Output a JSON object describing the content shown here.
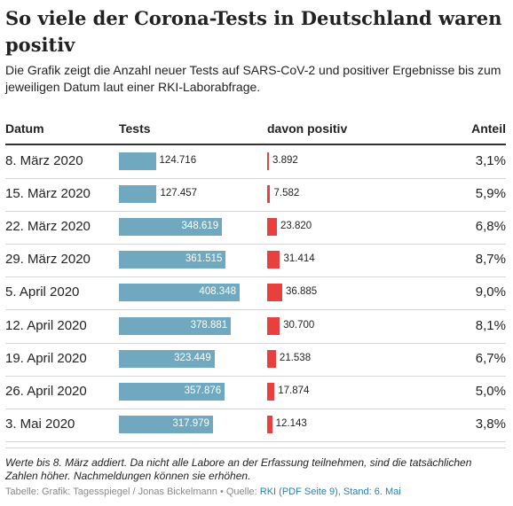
{
  "title": "So viele der Corona-Tests in Deutschland waren positiv",
  "description": "Die Grafik zeigt die Anzahl neuer Tests auf SARS-CoV-2 und positiver Ergebnisse bis zum jeweiligen Datum laut einer RKI-Laborabfrage.",
  "headers": {
    "date": "Datum",
    "tests": "Tests",
    "positive": "davon positiv",
    "share": "Anteil"
  },
  "colors": {
    "tests_bar": "#6fa8bf",
    "positive_bar": "#e8403e"
  },
  "chart_data": {
    "type": "table",
    "rows": [
      {
        "date": "8. März 2020",
        "tests": 124716,
        "tests_label": "124.716",
        "positive": 3892,
        "positive_label": "3.892",
        "share": "3,1%"
      },
      {
        "date": "15. März 2020",
        "tests": 127457,
        "tests_label": "127.457",
        "positive": 7582,
        "positive_label": "7.582",
        "share": "5,9%"
      },
      {
        "date": "22. März 2020",
        "tests": 348619,
        "tests_label": "348.619",
        "positive": 23820,
        "positive_label": "23.820",
        "share": "6,8%"
      },
      {
        "date": "29. März 2020",
        "tests": 361515,
        "tests_label": "361.515",
        "positive": 31414,
        "positive_label": "31.414",
        "share": "8,7%"
      },
      {
        "date": "5. April 2020",
        "tests": 408348,
        "tests_label": "408.348",
        "positive": 36885,
        "positive_label": "36.885",
        "share": "9,0%"
      },
      {
        "date": "12. April 2020",
        "tests": 378881,
        "tests_label": "378.881",
        "positive": 30700,
        "positive_label": "30.700",
        "share": "8,1%"
      },
      {
        "date": "19. April 2020",
        "tests": 323449,
        "tests_label": "323.449",
        "positive": 21538,
        "positive_label": "21.538",
        "share": "6,7%"
      },
      {
        "date": "26. April 2020",
        "tests": 357876,
        "tests_label": "357.876",
        "positive": 17874,
        "positive_label": "17.874",
        "share": "5,0%"
      },
      {
        "date": "3. Mai 2020",
        "tests": 317979,
        "tests_label": "317.979",
        "positive": 12143,
        "positive_label": "12.143",
        "share": "3,8%"
      }
    ]
  },
  "note": "Werte bis 8. März addiert. Da nicht alle Labore an der Erfassung teilnehmen, sind die tatsächlichen Zahlen höher. Nachmeldungen können sie erhöhen.",
  "source": {
    "prefix": "Tabelle: Grafik: Tagesspiegel / Jonas Bickelmann",
    "separator": "•",
    "label": "Quelle:",
    "link_text": "RKI (PDF Seite 9), Stand: 6. Mai"
  }
}
